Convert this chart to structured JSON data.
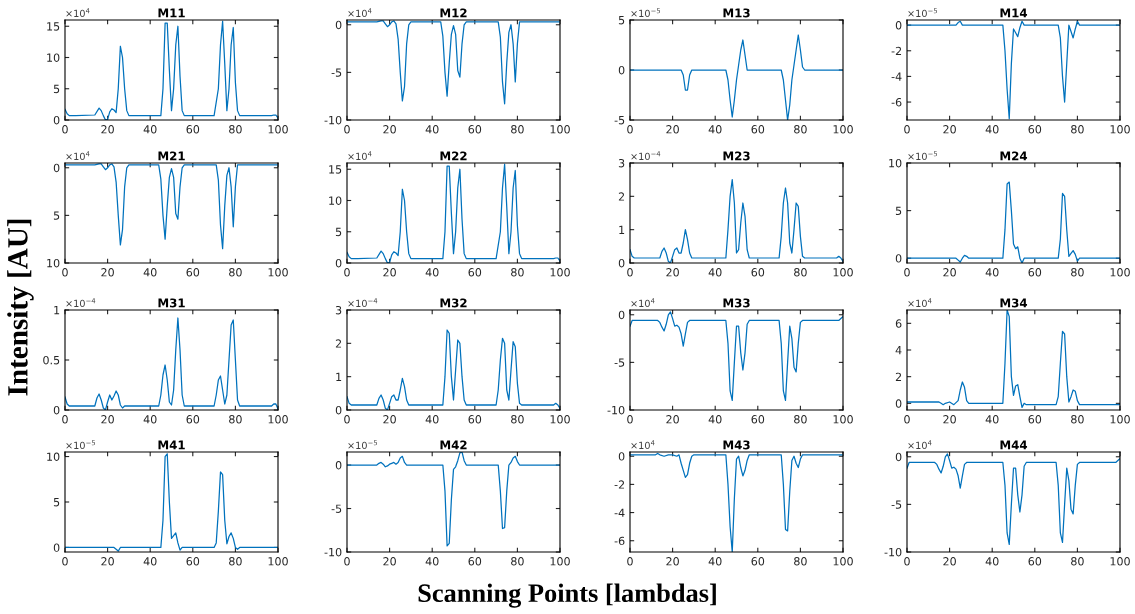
{
  "chart_data": [
    {
      "type": "line",
      "title": "M11",
      "ylabel": "Intensity [AU]",
      "annotations": [
        "×10$^{4}$"
      ],
      "xlim": [
        0,
        100
      ],
      "xticks": [
        0,
        20,
        40,
        60,
        80,
        100
      ],
      "ylim": [
        0,
        16
      ],
      "yticks": [
        0,
        5,
        10,
        15
      ],
      "x": [
        0,
        1,
        2,
        5,
        14,
        16,
        17,
        18,
        19,
        20,
        21,
        22,
        23,
        24,
        25,
        26,
        27,
        28,
        29,
        30,
        45,
        46,
        47,
        48,
        49,
        50,
        51,
        52,
        53,
        54,
        55,
        56,
        70,
        72,
        73,
        74,
        75,
        76,
        77,
        78,
        79,
        80,
        81,
        82,
        97,
        98,
        99,
        100
      ],
      "series": [
        {
          "color": "#0072bd",
          "values": [
            1.7,
            1,
            0.7,
            0.7,
            0.8,
            1.9,
            1.5,
            0.7,
            0,
            0.1,
            1.3,
            1.8,
            1.6,
            1.2,
            5,
            11.8,
            10,
            5,
            1.5,
            0.7,
            0.7,
            5,
            15.5,
            15.5,
            8,
            1.5,
            5,
            12,
            15,
            7,
            1.5,
            0.7,
            0.7,
            5,
            12,
            15.8,
            9,
            1.5,
            5,
            12,
            14.8,
            6,
            1.5,
            0.7,
            0.7,
            0.8,
            0.8,
            0.3
          ]
        }
      ]
    },
    {
      "type": "line",
      "title": "M12",
      "annotations": [
        "×10$^{4}$"
      ],
      "xlim": [
        0,
        100
      ],
      "xticks": [
        0,
        20,
        40,
        60,
        80,
        100
      ],
      "ylim": [
        -10,
        0.5
      ],
      "yticks": [
        -10,
        -5,
        0
      ],
      "x": [
        0,
        14,
        16,
        17,
        18,
        19,
        20,
        21,
        22,
        23,
        24,
        25,
        26,
        27,
        28,
        29,
        30,
        44,
        45,
        46,
        47,
        48,
        49,
        50,
        51,
        52,
        53,
        54,
        55,
        56,
        71,
        72,
        73,
        74,
        75,
        76,
        77,
        78,
        79,
        80,
        81,
        100
      ],
      "series": [
        {
          "color": "#0072bd",
          "values": [
            0.3,
            0.3,
            0.4,
            0.4,
            0.1,
            -0.2,
            0,
            0.3,
            0.4,
            0.1,
            -1.5,
            -5,
            -8,
            -6.5,
            -2,
            0,
            0.3,
            0.3,
            -1.2,
            -5,
            -7.5,
            -4,
            -1,
            -0.1,
            -1,
            -4.8,
            -5.5,
            -2,
            0,
            0.3,
            0.3,
            -1.3,
            -6,
            -8.3,
            -4,
            -0.8,
            0,
            -2,
            -6,
            -2,
            0.3,
            0.3
          ]
        }
      ]
    },
    {
      "type": "line",
      "title": "M13",
      "annotations": [
        "×10$^{−5}$"
      ],
      "xlim": [
        0,
        100
      ],
      "xticks": [
        0,
        20,
        40,
        60,
        80,
        100
      ],
      "ylim": [
        -5,
        5
      ],
      "yticks": [
        -5,
        0,
        5
      ],
      "x": [
        0,
        24,
        25,
        26,
        27,
        28,
        29,
        45,
        46,
        47,
        48,
        49,
        50,
        51,
        52,
        53,
        54,
        55,
        71,
        72,
        73,
        74,
        75,
        76,
        77,
        78,
        79,
        80,
        81,
        82,
        100
      ],
      "series": [
        {
          "color": "#0072bd",
          "values": [
            0,
            0,
            -0.5,
            -2,
            -2,
            -0.5,
            0,
            0,
            -1,
            -3,
            -4.7,
            -3,
            -1,
            0.5,
            2,
            3,
            1.5,
            0,
            0,
            -1,
            -3,
            -5,
            -3.5,
            -1,
            0.5,
            2,
            3.5,
            2,
            0.3,
            0,
            0
          ]
        }
      ]
    },
    {
      "type": "line",
      "title": "M14",
      "annotations": [
        "×10$^{−5}$"
      ],
      "xlim": [
        0,
        100
      ],
      "xticks": [
        0,
        20,
        40,
        60,
        80,
        100
      ],
      "ylim": [
        -7.4,
        0.4
      ],
      "yticks": [
        -6,
        -4,
        -2,
        0
      ],
      "x": [
        0,
        23,
        24,
        25,
        26,
        45,
        46,
        47,
        48,
        49,
        50,
        51,
        52,
        53,
        54,
        55,
        71,
        72,
        73,
        74,
        75,
        76,
        77,
        78,
        79,
        80,
        81,
        100
      ],
      "series": [
        {
          "color": "#0072bd",
          "values": [
            0,
            0,
            0.2,
            0.3,
            0,
            0,
            -2,
            -5,
            -7.3,
            -3,
            -0.3,
            -0.6,
            -0.9,
            -0.2,
            0.3,
            0,
            0,
            -1,
            -4,
            -6,
            -3,
            0,
            -0.5,
            -1,
            -0.3,
            0.3,
            0,
            0
          ]
        }
      ]
    },
    {
      "type": "line",
      "title": "M21",
      "annotations": [
        "×10$^{4}$"
      ],
      "xlim": [
        0,
        100
      ],
      "xticks": [
        0,
        20,
        40,
        60,
        80,
        100
      ],
      "ylim": [
        10,
        -0.5
      ],
      "yticks": [
        0,
        5,
        10
      ],
      "x": [
        0,
        14,
        16,
        17,
        18,
        19,
        20,
        21,
        22,
        23,
        24,
        25,
        26,
        27,
        28,
        29,
        30,
        44,
        45,
        46,
        47,
        48,
        49,
        50,
        51,
        52,
        53,
        54,
        55,
        56,
        71,
        72,
        73,
        74,
        75,
        76,
        77,
        78,
        79,
        80,
        81,
        100
      ],
      "series": [
        {
          "color": "#0072bd",
          "values": [
            -0.3,
            -0.3,
            -0.4,
            -0.4,
            -0.1,
            0.2,
            0,
            -0.3,
            -0.4,
            -0.1,
            1.5,
            5,
            8.1,
            6.5,
            2,
            0,
            -0.3,
            -0.3,
            1.2,
            5,
            7.5,
            4,
            1,
            0.1,
            1,
            4.8,
            5.4,
            2,
            0,
            -0.3,
            -0.3,
            1.3,
            6,
            8.5,
            4,
            0.8,
            0,
            2,
            6.2,
            2,
            -0.3,
            -0.3
          ]
        }
      ]
    },
    {
      "type": "line",
      "title": "M22",
      "annotations": [
        "×10$^{4}$"
      ],
      "xlim": [
        0,
        100
      ],
      "xticks": [
        0,
        20,
        40,
        60,
        80,
        100
      ],
      "ylim": [
        0,
        16
      ],
      "yticks": [
        0,
        5,
        10,
        15
      ],
      "x": [
        0,
        1,
        2,
        5,
        14,
        16,
        17,
        18,
        19,
        20,
        21,
        22,
        23,
        24,
        25,
        26,
        27,
        28,
        29,
        30,
        45,
        46,
        47,
        48,
        49,
        50,
        51,
        52,
        53,
        54,
        55,
        56,
        70,
        72,
        73,
        74,
        75,
        76,
        77,
        78,
        79,
        80,
        81,
        82,
        97,
        98,
        99,
        100
      ],
      "series": [
        {
          "color": "#0072bd",
          "values": [
            1.7,
            1,
            0.7,
            0.7,
            0.8,
            1.9,
            1.5,
            0.7,
            0,
            0.1,
            1.3,
            1.8,
            1.6,
            1.2,
            5,
            11.8,
            10,
            5,
            1.5,
            0.7,
            0.7,
            5,
            15.5,
            15.5,
            8,
            1.5,
            5,
            12,
            15,
            7,
            1.5,
            0.7,
            0.7,
            5,
            12,
            15.8,
            9,
            1.5,
            5,
            12,
            14.8,
            6,
            1.5,
            0.7,
            0.7,
            0.8,
            0.8,
            0.3
          ]
        }
      ]
    },
    {
      "type": "line",
      "title": "M23",
      "annotations": [
        "×10$^{−4}$"
      ],
      "xlim": [
        0,
        100
      ],
      "xticks": [
        0,
        20,
        40,
        60,
        80,
        100
      ],
      "ylim": [
        0,
        3
      ],
      "yticks": [
        0,
        1,
        2,
        3
      ],
      "x": [
        0,
        1,
        2,
        14,
        15,
        16,
        17,
        18,
        19,
        20,
        21,
        22,
        23,
        24,
        25,
        26,
        27,
        28,
        29,
        45,
        46,
        47,
        48,
        49,
        50,
        51,
        52,
        53,
        54,
        55,
        56,
        70,
        71,
        72,
        73,
        74,
        75,
        76,
        77,
        78,
        79,
        80,
        81,
        82,
        97,
        98,
        99,
        100
      ],
      "series": [
        {
          "color": "#0072bd",
          "values": [
            0.4,
            0.2,
            0.15,
            0.15,
            0.35,
            0.45,
            0.3,
            0.05,
            0,
            0.2,
            0.4,
            0.45,
            0.3,
            0.3,
            0.6,
            1,
            0.7,
            0.3,
            0.15,
            0.15,
            1,
            2,
            2.5,
            1.8,
            0.3,
            0.4,
            1.2,
            1.8,
            1.4,
            0.4,
            0.15,
            0.15,
            0.8,
            1.8,
            2.25,
            1.8,
            0.6,
            0.3,
            1,
            1.8,
            1.7,
            0.8,
            0.2,
            0.15,
            0.15,
            0.2,
            0.15,
            0.05
          ]
        }
      ]
    },
    {
      "type": "line",
      "title": "M24",
      "annotations": [
        "×10$^{−5}$"
      ],
      "xlim": [
        0,
        100
      ],
      "xticks": [
        0,
        20,
        40,
        60,
        80,
        100
      ],
      "ylim": [
        -0.5,
        10
      ],
      "yticks": [
        0,
        5,
        10
      ],
      "x": [
        0,
        23,
        24,
        25,
        26,
        27,
        28,
        29,
        45,
        46,
        47,
        48,
        49,
        50,
        51,
        52,
        53,
        54,
        55,
        71,
        72,
        73,
        74,
        75,
        76,
        77,
        78,
        79,
        80,
        81,
        100
      ],
      "series": [
        {
          "color": "#0072bd",
          "values": [
            0,
            0,
            -0.2,
            -0.4,
            0,
            0.3,
            0.2,
            0,
            0,
            3,
            7.8,
            8,
            5,
            1.5,
            1,
            1.2,
            0,
            -0.5,
            0,
            0,
            2,
            6.8,
            6.5,
            3,
            0.2,
            0.5,
            0.8,
            0.4,
            -0.3,
            0,
            0
          ]
        }
      ]
    },
    {
      "type": "line",
      "title": "M31",
      "annotations": [
        "×10$^{−4}$"
      ],
      "xlim": [
        0,
        100
      ],
      "xticks": [
        0,
        20,
        40,
        60,
        80,
        100
      ],
      "ylim": [
        0,
        1
      ],
      "yticks": [
        0,
        0.5,
        1
      ],
      "x": [
        0,
        1,
        2,
        14,
        15,
        16,
        17,
        18,
        19,
        20,
        21,
        22,
        23,
        24,
        25,
        26,
        27,
        28,
        44,
        45,
        46,
        47,
        48,
        49,
        50,
        51,
        52,
        53,
        54,
        55,
        56,
        70,
        71,
        72,
        73,
        74,
        75,
        76,
        77,
        78,
        79,
        80,
        81,
        82,
        97,
        98,
        99,
        100
      ],
      "series": [
        {
          "color": "#0072bd",
          "values": [
            0.13,
            0.06,
            0.04,
            0.04,
            0.12,
            0.16,
            0.1,
            0.02,
            0,
            0.08,
            0.15,
            0.1,
            0.14,
            0.19,
            0.15,
            0.05,
            0.02,
            0.04,
            0.04,
            0.15,
            0.35,
            0.45,
            0.3,
            0.08,
            0.05,
            0.2,
            0.6,
            0.92,
            0.6,
            0.15,
            0.04,
            0.04,
            0.15,
            0.3,
            0.34,
            0.2,
            0.06,
            0.15,
            0.5,
            0.85,
            0.9,
            0.5,
            0.1,
            0.04,
            0.04,
            0.06,
            0.06,
            0.01
          ]
        }
      ]
    },
    {
      "type": "line",
      "title": "M32",
      "annotations": [
        "×10$^{−4}$"
      ],
      "xlim": [
        0,
        100
      ],
      "xticks": [
        0,
        20,
        40,
        60,
        80,
        100
      ],
      "ylim": [
        0,
        3
      ],
      "yticks": [
        0,
        1,
        2,
        3
      ],
      "x": [
        0,
        1,
        2,
        14,
        15,
        16,
        17,
        18,
        19,
        20,
        21,
        22,
        23,
        24,
        25,
        26,
        27,
        28,
        29,
        45,
        46,
        47,
        48,
        49,
        50,
        51,
        52,
        53,
        54,
        55,
        56,
        70,
        71,
        72,
        73,
        74,
        75,
        76,
        77,
        78,
        79,
        80,
        81,
        82,
        97,
        98,
        99,
        100
      ],
      "series": [
        {
          "color": "#0072bd",
          "values": [
            0.4,
            0.2,
            0.15,
            0.15,
            0.35,
            0.45,
            0.3,
            0.05,
            0,
            0.2,
            0.4,
            0.45,
            0.3,
            0.3,
            0.6,
            0.95,
            0.7,
            0.3,
            0.15,
            0.15,
            1,
            2.4,
            2.3,
            1,
            0.3,
            1.2,
            2.1,
            2,
            1,
            0.3,
            0.15,
            0.15,
            0.6,
            1.5,
            2.15,
            2,
            0.6,
            0.3,
            1.2,
            2.05,
            1.9,
            0.8,
            0.2,
            0.15,
            0.15,
            0.2,
            0.15,
            0.05
          ]
        }
      ]
    },
    {
      "type": "line",
      "title": "M33",
      "annotations": [
        "×10$^{4}$"
      ],
      "xlim": [
        0,
        100
      ],
      "xticks": [
        0,
        20,
        40,
        60,
        80,
        100
      ],
      "ylim": [
        -10,
        0.5
      ],
      "yticks": [
        -10,
        -5,
        0
      ],
      "x": [
        0,
        1,
        2,
        13,
        14,
        15,
        16,
        17,
        18,
        19,
        20,
        21,
        22,
        23,
        24,
        25,
        26,
        27,
        28,
        45,
        46,
        47,
        48,
        49,
        50,
        51,
        52,
        53,
        54,
        55,
        56,
        70,
        71,
        72,
        73,
        74,
        75,
        76,
        77,
        78,
        79,
        80,
        81,
        97,
        98,
        99,
        100
      ],
      "series": [
        {
          "color": "#0072bd",
          "values": [
            -1.2,
            -0.6,
            -0.6,
            -0.6,
            -0.8,
            -1.3,
            -1.7,
            -1,
            0,
            0.3,
            -0.4,
            -1.2,
            -1.1,
            -1.3,
            -2,
            -3.3,
            -2,
            -0.8,
            -0.6,
            -0.6,
            -3,
            -8,
            -9,
            -5,
            -1.2,
            -1.2,
            -4,
            -5.8,
            -4,
            -1,
            -0.6,
            -0.6,
            -3,
            -8,
            -9,
            -5,
            -1.2,
            -2.5,
            -5.5,
            -6,
            -3,
            -0.8,
            -0.6,
            -0.6,
            -0.6,
            -0.4,
            -0.2
          ]
        }
      ]
    },
    {
      "type": "line",
      "title": "M34",
      "annotations": [
        "×10$^{4}$"
      ],
      "xlim": [
        0,
        100
      ],
      "xticks": [
        0,
        20,
        40,
        60,
        80,
        100
      ],
      "ylim": [
        -0.5,
        7
      ],
      "yticks": [
        0,
        2,
        4,
        6
      ],
      "x": [
        0,
        15,
        16,
        17,
        18,
        20,
        22,
        24,
        25,
        26,
        27,
        28,
        29,
        45,
        46,
        47,
        48,
        49,
        50,
        51,
        52,
        53,
        54,
        55,
        56,
        70,
        71,
        72,
        73,
        74,
        75,
        76,
        77,
        78,
        79,
        80,
        81,
        100
      ],
      "series": [
        {
          "color": "#0072bd",
          "values": [
            0.1,
            0.1,
            0,
            -0.1,
            0,
            0.1,
            -0.1,
            0.2,
            1,
            1.6,
            1.2,
            0.2,
            0,
            0,
            3,
            7,
            6.5,
            2,
            0.6,
            1.3,
            1.4,
            0.5,
            -0.3,
            0,
            -0.1,
            -0.1,
            0.5,
            3,
            5.4,
            5.2,
            2,
            0.1,
            0.5,
            1,
            0.9,
            0.2,
            -0.1,
            -0.1
          ]
        }
      ]
    },
    {
      "type": "line",
      "title": "M41",
      "xlabel": "Scanning Points [lambdas]",
      "annotations": [
        "×10$^{−5}$"
      ],
      "xlim": [
        0,
        100
      ],
      "xticks": [
        0,
        20,
        40,
        60,
        80,
        100
      ],
      "ylim": [
        -0.5,
        10.5
      ],
      "yticks": [
        0,
        5,
        10
      ],
      "x": [
        0,
        23,
        24,
        25,
        26,
        45,
        46,
        47,
        48,
        49,
        50,
        51,
        52,
        53,
        54,
        55,
        70,
        71,
        72,
        73,
        74,
        75,
        76,
        77,
        78,
        79,
        80,
        81,
        82,
        100
      ],
      "series": [
        {
          "color": "#0072bd",
          "values": [
            0,
            0,
            -0.2,
            -0.4,
            0,
            0,
            3,
            10,
            10.3,
            5,
            1,
            1.3,
            1.6,
            0.5,
            -0.3,
            0,
            0,
            0.5,
            4,
            8.3,
            8,
            3,
            0.4,
            1.2,
            1.6,
            1,
            0,
            -0.2,
            0,
            0
          ]
        }
      ]
    },
    {
      "type": "line",
      "title": "M42",
      "annotations": [
        "×10$^{−5}$"
      ],
      "xlim": [
        0,
        100
      ],
      "xticks": [
        0,
        20,
        40,
        60,
        80,
        100
      ],
      "ylim": [
        -10,
        1.5
      ],
      "yticks": [
        -10,
        -5,
        0
      ],
      "x": [
        0,
        14,
        15,
        16,
        17,
        18,
        19,
        20,
        21,
        22,
        23,
        24,
        25,
        26,
        27,
        28,
        45,
        46,
        47,
        48,
        49,
        50,
        51,
        52,
        53,
        54,
        55,
        56,
        71,
        72,
        73,
        74,
        75,
        76,
        77,
        78,
        79,
        80,
        81,
        100
      ],
      "series": [
        {
          "color": "#0072bd",
          "values": [
            0,
            0,
            0.2,
            0.3,
            0.1,
            -0.2,
            -0.1,
            0.1,
            0.2,
            0.3,
            0.1,
            0.3,
            0.8,
            1,
            0.3,
            0,
            0,
            -3,
            -9.3,
            -9,
            -4,
            -0.5,
            -0.2,
            0.5,
            1.4,
            1.5,
            0.5,
            0,
            0,
            -3,
            -7.3,
            -7.2,
            -3,
            0,
            0.3,
            0.8,
            1,
            0.4,
            0,
            0
          ]
        }
      ]
    },
    {
      "type": "line",
      "title": "M43",
      "annotations": [
        "×10$^{4}$"
      ],
      "xlim": [
        0,
        100
      ],
      "xticks": [
        0,
        20,
        40,
        60,
        80,
        100
      ],
      "ylim": [
        -6.8,
        0.3
      ],
      "yticks": [
        -6,
        -4,
        -2,
        0
      ],
      "x": [
        0,
        12,
        13,
        14,
        16,
        18,
        20,
        22,
        23,
        24,
        25,
        26,
        27,
        28,
        29,
        30,
        45,
        46,
        47,
        48,
        49,
        50,
        51,
        52,
        53,
        54,
        55,
        56,
        71,
        72,
        73,
        74,
        75,
        76,
        77,
        78,
        79,
        80,
        81,
        100
      ],
      "series": [
        {
          "color": "#0072bd",
          "values": [
            0.1,
            0.1,
            0.2,
            0.1,
            0,
            0.1,
            0.1,
            0,
            0.1,
            -0.5,
            -1,
            -1.5,
            -1.3,
            -0.5,
            0,
            0.1,
            0.1,
            -2,
            -5,
            -6.8,
            -3,
            -0.2,
            0,
            -0.8,
            -1.4,
            -1,
            -0.3,
            0.1,
            0.1,
            -2,
            -5.2,
            -5.3,
            -2.5,
            -0.3,
            0,
            -0.5,
            -0.8,
            -0.2,
            0.1,
            0.1
          ]
        }
      ]
    },
    {
      "type": "line",
      "title": "M44",
      "annotations": [
        "×10$^{4}$"
      ],
      "xlim": [
        0,
        100
      ],
      "xticks": [
        0,
        20,
        40,
        60,
        80,
        100
      ],
      "ylim": [
        -10,
        0.5
      ],
      "yticks": [
        -10,
        -5,
        0
      ],
      "x": [
        0,
        1,
        2,
        13,
        14,
        15,
        16,
        17,
        18,
        19,
        20,
        21,
        22,
        23,
        24,
        25,
        26,
        27,
        28,
        45,
        46,
        47,
        48,
        49,
        50,
        51,
        52,
        53,
        54,
        55,
        56,
        70,
        71,
        72,
        73,
        74,
        75,
        76,
        77,
        78,
        79,
        80,
        81,
        97,
        98,
        99,
        100
      ],
      "series": [
        {
          "color": "#0072bd",
          "values": [
            -1.2,
            -0.6,
            -0.6,
            -0.6,
            -0.8,
            -1.3,
            -1.7,
            -1,
            0,
            0.3,
            -0.4,
            -1.2,
            -1.1,
            -1.3,
            -2,
            -3.3,
            -2,
            -0.8,
            -0.6,
            -0.6,
            -3,
            -8,
            -9.2,
            -5,
            -1.2,
            -1.2,
            -4,
            -5.8,
            -4,
            -1,
            -0.6,
            -0.6,
            -3,
            -8,
            -9,
            -5,
            -1.2,
            -2.5,
            -5.5,
            -6,
            -3,
            -0.8,
            -0.6,
            -0.6,
            -0.6,
            -0.4,
            -0.2
          ]
        }
      ]
    }
  ]
}
